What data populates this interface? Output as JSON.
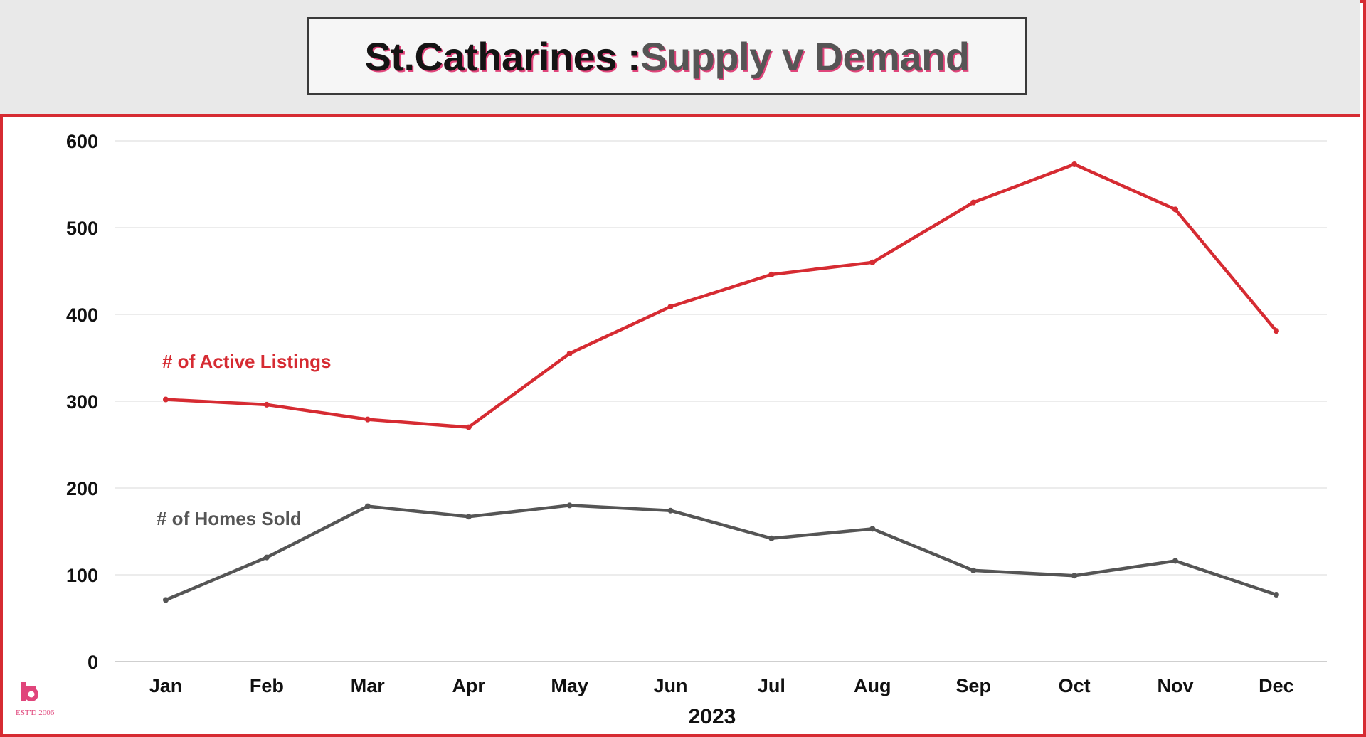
{
  "title": {
    "part1": "St.Catharines : ",
    "part2": "Supply v Demand"
  },
  "logo": {
    "text": "EST'D 2006",
    "color": "#e0457b"
  },
  "colors": {
    "active": "#d62b32",
    "sold": "#555555",
    "grid": "#e6e6e6",
    "frame": "#d62b32"
  },
  "chart_data": {
    "type": "line",
    "categories": [
      "Jan",
      "Feb",
      "Mar",
      "Apr",
      "May",
      "Jun",
      "Jul",
      "Aug",
      "Sep",
      "Oct",
      "Nov",
      "Dec"
    ],
    "xlabel": "2023",
    "ylabel": "",
    "ylim": [
      0,
      600
    ],
    "yticks": [
      0,
      100,
      200,
      300,
      400,
      500,
      600
    ],
    "grid": true,
    "series": [
      {
        "name": "# of Active Listings",
        "color": "#d62b32",
        "values": [
          302,
          296,
          279,
          270,
          355,
          409,
          446,
          460,
          529,
          573,
          521,
          381
        ]
      },
      {
        "name": "# of Homes Sold",
        "color": "#555555",
        "values": [
          71,
          120,
          179,
          167,
          180,
          174,
          142,
          153,
          105,
          99,
          116,
          77
        ]
      }
    ]
  }
}
